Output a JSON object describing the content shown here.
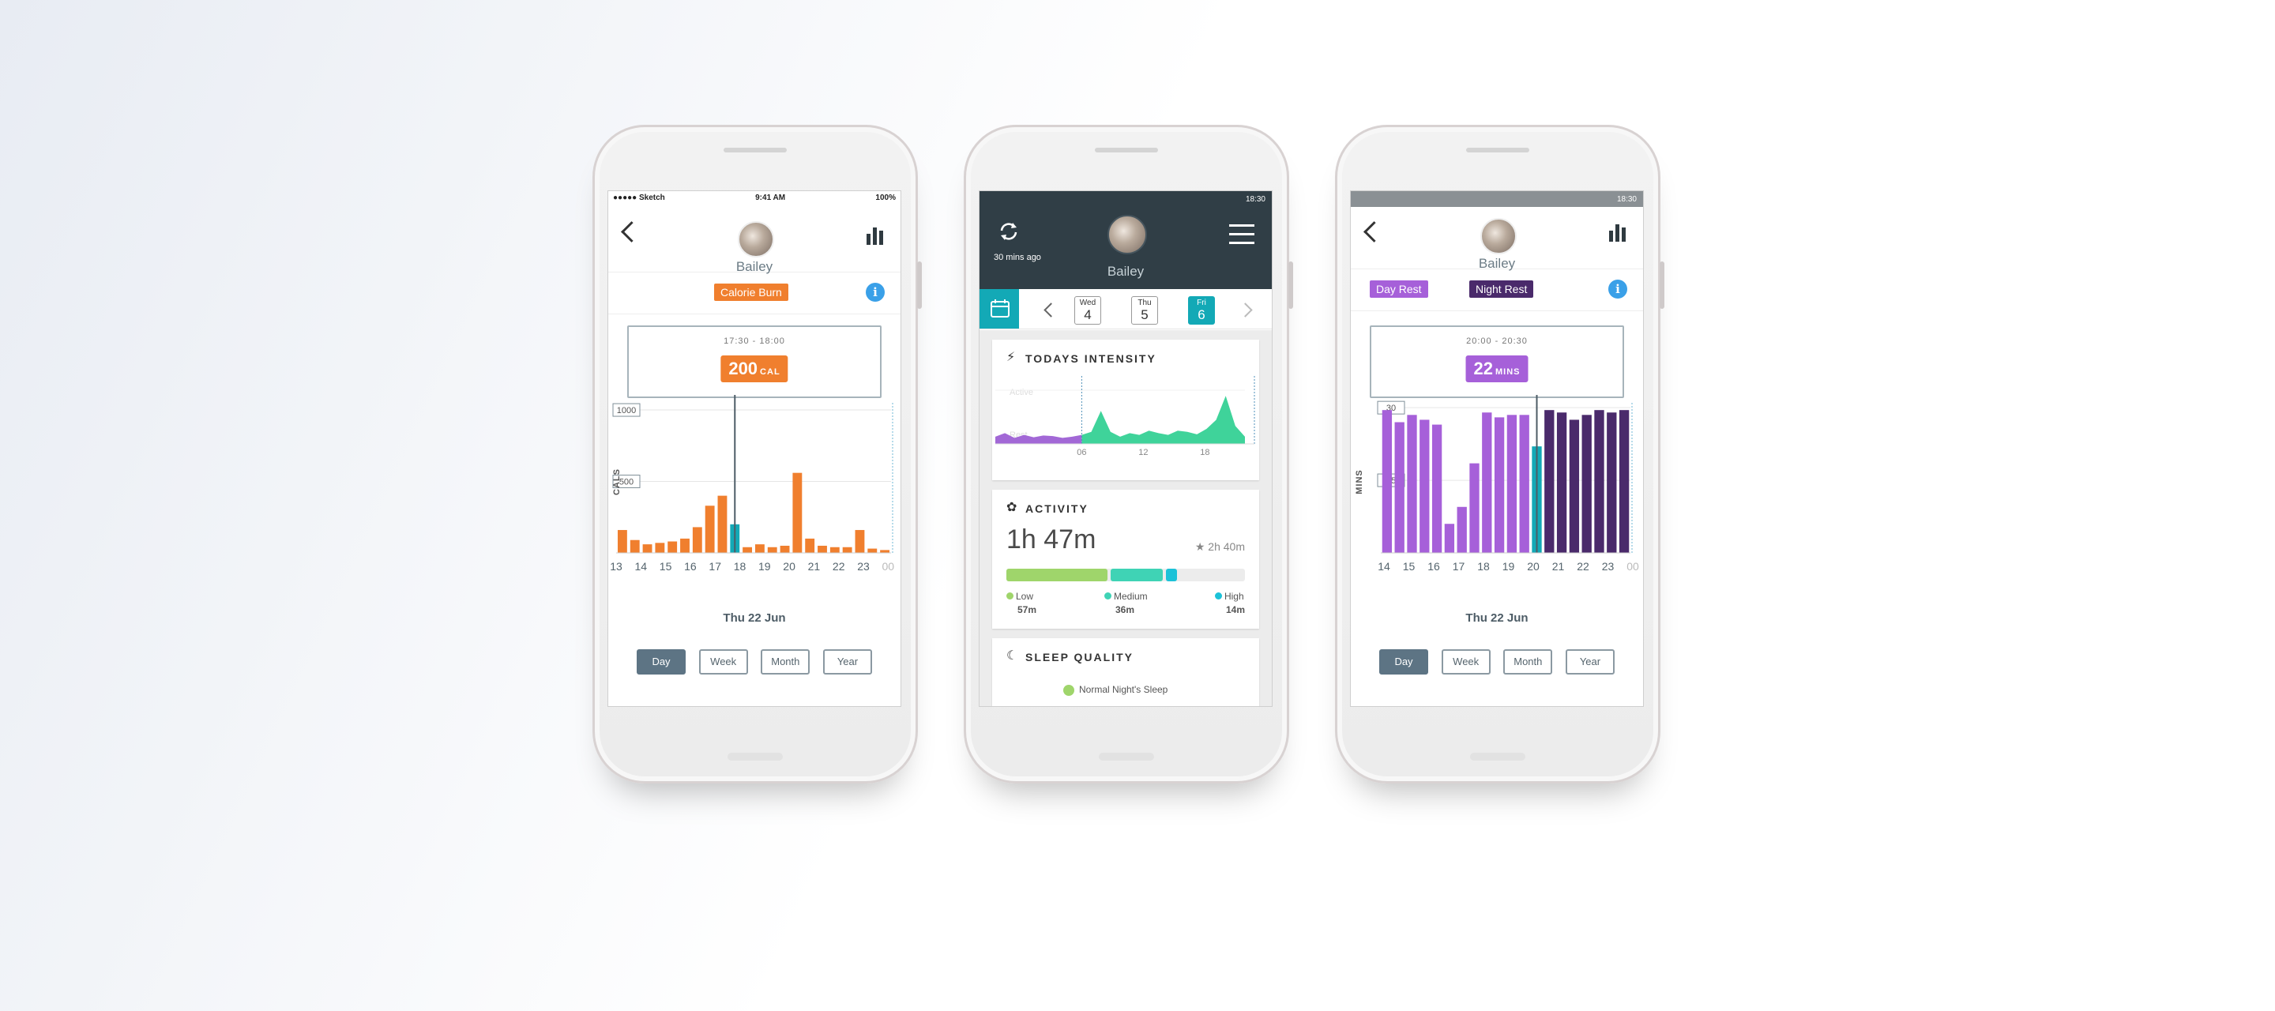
{
  "phone1": {
    "status": {
      "carrier": "●●●●● Sketch",
      "time": "9:41 AM",
      "battery": "100%"
    },
    "pet_name": "Bailey",
    "tag": "Calorie Burn",
    "tag_color": "#f07f2e",
    "tooltip": {
      "time": "17:30 - 18:00",
      "value": "200",
      "unit": "CAL"
    },
    "y_label": "CALS",
    "date": "Thu 22 Jun",
    "periods": [
      "Day",
      "Week",
      "Month",
      "Year"
    ],
    "active_period": "Day"
  },
  "phone2": {
    "status_time": "18:30",
    "sync_text": "30 mins ago",
    "pet_name": "Bailey",
    "days": [
      {
        "dow": "Wed",
        "num": "4"
      },
      {
        "dow": "Thu",
        "num": "5"
      },
      {
        "dow": "Fri",
        "num": "6"
      }
    ],
    "intensity": {
      "title": "TODAYS INTENSITY",
      "y_labels": [
        "Active",
        "Rest"
      ],
      "x_ticks": [
        "06",
        "12",
        "18"
      ]
    },
    "activity": {
      "title": "ACTIVITY",
      "total": "1h 47m",
      "goal": "2h 40m",
      "levels": [
        {
          "label": "Low",
          "value": "57m",
          "color": "#9fd56b"
        },
        {
          "label": "Medium",
          "value": "36m",
          "color": "#3fd3b5"
        },
        {
          "label": "High",
          "value": "14m",
          "color": "#1cc2d8"
        }
      ]
    },
    "sleep": {
      "title": "SLEEP QUALITY",
      "line": "Normal Night's Sleep"
    }
  },
  "phone3": {
    "status_time": "18:30",
    "pet_name": "Bailey",
    "tags": [
      {
        "label": "Day Rest",
        "color": "#a660d9"
      },
      {
        "label": "Night Rest",
        "color": "#4a2a6b"
      }
    ],
    "tooltip": {
      "time": "20:00 - 20:30",
      "value": "22",
      "unit": "MINS"
    },
    "y_label": "MINS",
    "date": "Thu 22 Jun",
    "periods": [
      "Day",
      "Week",
      "Month",
      "Year"
    ],
    "active_period": "Day"
  },
  "chart_data": [
    {
      "type": "bar",
      "title": "",
      "ylabel": "CALS",
      "y_ticks": [
        500,
        1000
      ],
      "ylim": [
        0,
        1050
      ],
      "x_ticks": [
        "13",
        "14",
        "15",
        "16",
        "17",
        "18",
        "19",
        "20",
        "21",
        "22",
        "23",
        "00"
      ],
      "values": [
        160,
        90,
        60,
        70,
        80,
        100,
        180,
        330,
        400,
        200,
        40,
        60,
        40,
        50,
        560,
        100,
        50,
        40,
        40,
        160,
        30,
        20
      ],
      "highlight_index": 9,
      "colors": {
        "bar": "#f07f2e",
        "highlight": "#13a9b6"
      }
    },
    {
      "type": "area",
      "title": "TODAYS INTENSITY",
      "x_ticks": [
        "06",
        "12",
        "18"
      ],
      "series": [
        {
          "name": "Rest",
          "color": "#a268d6"
        },
        {
          "name": "Active",
          "color": "#3fd39a"
        }
      ],
      "values": [
        0.12,
        0.18,
        0.1,
        0.15,
        0.11,
        0.14,
        0.13,
        0.1,
        0.12,
        0.15,
        0.2,
        0.55,
        0.2,
        0.12,
        0.18,
        0.15,
        0.22,
        0.18,
        0.15,
        0.22,
        0.2,
        0.16,
        0.25,
        0.4,
        0.8,
        0.3,
        0.12
      ]
    },
    {
      "type": "bar",
      "title": "",
      "ylabel": "MINS",
      "y_ticks": [
        15,
        30
      ],
      "ylim": [
        0,
        31
      ],
      "x_ticks": [
        "14",
        "15",
        "16",
        "17",
        "18",
        "19",
        "20",
        "21",
        "22",
        "23",
        "00"
      ],
      "values": [
        29.5,
        27,
        28.5,
        27.5,
        26.5,
        6,
        9.5,
        18.5,
        29,
        28,
        28.5,
        28.5,
        22,
        29.5,
        29,
        27.5,
        28.5,
        29.5,
        29,
        29.5
      ],
      "night_start_index": 12,
      "highlight_index": 12,
      "colors": {
        "day": "#a660d9",
        "night": "#4a2a6b",
        "highlight": "#13a9b6"
      }
    }
  ]
}
